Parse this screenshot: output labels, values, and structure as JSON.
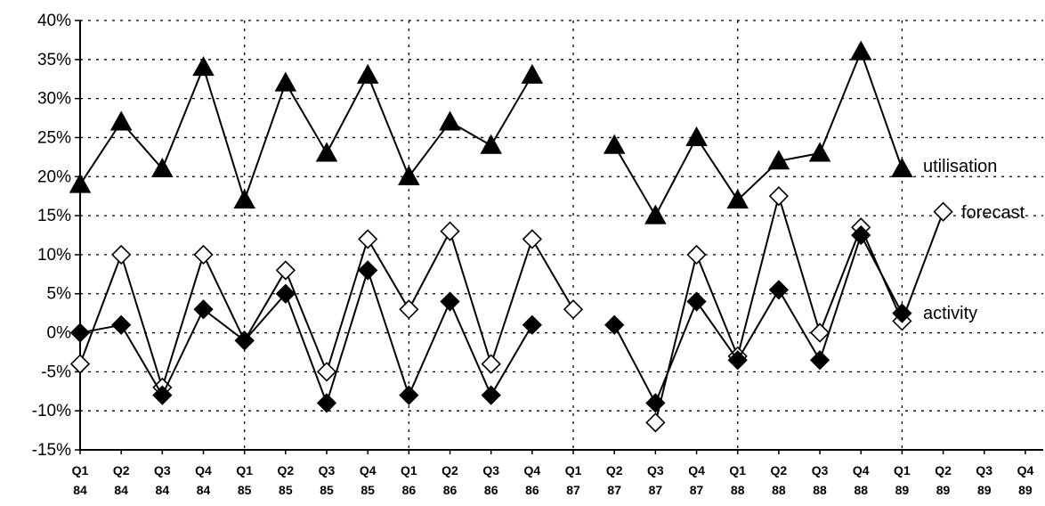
{
  "chart_data": {
    "type": "line",
    "categories": [
      {
        "q": "Q1",
        "y": "84"
      },
      {
        "q": "Q2",
        "y": "84"
      },
      {
        "q": "Q3",
        "y": "84"
      },
      {
        "q": "Q4",
        "y": "84"
      },
      {
        "q": "Q1",
        "y": "85"
      },
      {
        "q": "Q2",
        "y": "85"
      },
      {
        "q": "Q3",
        "y": "85"
      },
      {
        "q": "Q4",
        "y": "85"
      },
      {
        "q": "Q1",
        "y": "86"
      },
      {
        "q": "Q2",
        "y": "86"
      },
      {
        "q": "Q3",
        "y": "86"
      },
      {
        "q": "Q4",
        "y": "86"
      },
      {
        "q": "Q1",
        "y": "87"
      },
      {
        "q": "Q2",
        "y": "87"
      },
      {
        "q": "Q3",
        "y": "87"
      },
      {
        "q": "Q4",
        "y": "87"
      },
      {
        "q": "Q1",
        "y": "88"
      },
      {
        "q": "Q2",
        "y": "88"
      },
      {
        "q": "Q3",
        "y": "88"
      },
      {
        "q": "Q4",
        "y": "88"
      },
      {
        "q": "Q1",
        "y": "89"
      },
      {
        "q": "Q2",
        "y": "89"
      },
      {
        "q": "Q3",
        "y": "89"
      },
      {
        "q": "Q4",
        "y": "89"
      }
    ],
    "y_ticks": [
      "40%",
      "35%",
      "30%",
      "25%",
      "20%",
      "15%",
      "10%",
      "5%",
      "0%",
      "-5%",
      "-10%",
      "-15%"
    ],
    "ylim": [
      -15,
      40
    ],
    "y_unit": "%",
    "grid": true,
    "series": [
      {
        "name": "utilisation",
        "marker": "filled-triangle",
        "color": "#000000",
        "values": [
          19,
          27,
          21,
          34,
          17,
          32,
          23,
          33,
          20,
          27,
          24,
          33,
          null,
          24,
          15,
          25,
          17,
          22,
          23,
          36,
          21,
          null,
          null,
          null
        ]
      },
      {
        "name": "forecast",
        "marker": "open-diamond",
        "color": "#000000",
        "values": [
          -4,
          10,
          -7,
          10,
          -1,
          8,
          -5,
          12,
          3,
          13,
          -4,
          12,
          3,
          null,
          -11.5,
          10,
          -3,
          17.5,
          0,
          13.5,
          1.5,
          15.5,
          null,
          null
        ]
      },
      {
        "name": "activity",
        "marker": "filled-diamond",
        "color": "#000000",
        "values": [
          0,
          1,
          -8,
          3,
          -1,
          5,
          -9,
          8,
          -8,
          4,
          -8,
          1,
          null,
          1,
          -9,
          4,
          -3.5,
          5.5,
          -3.5,
          12.5,
          2.5,
          null,
          null,
          null
        ]
      }
    ]
  }
}
